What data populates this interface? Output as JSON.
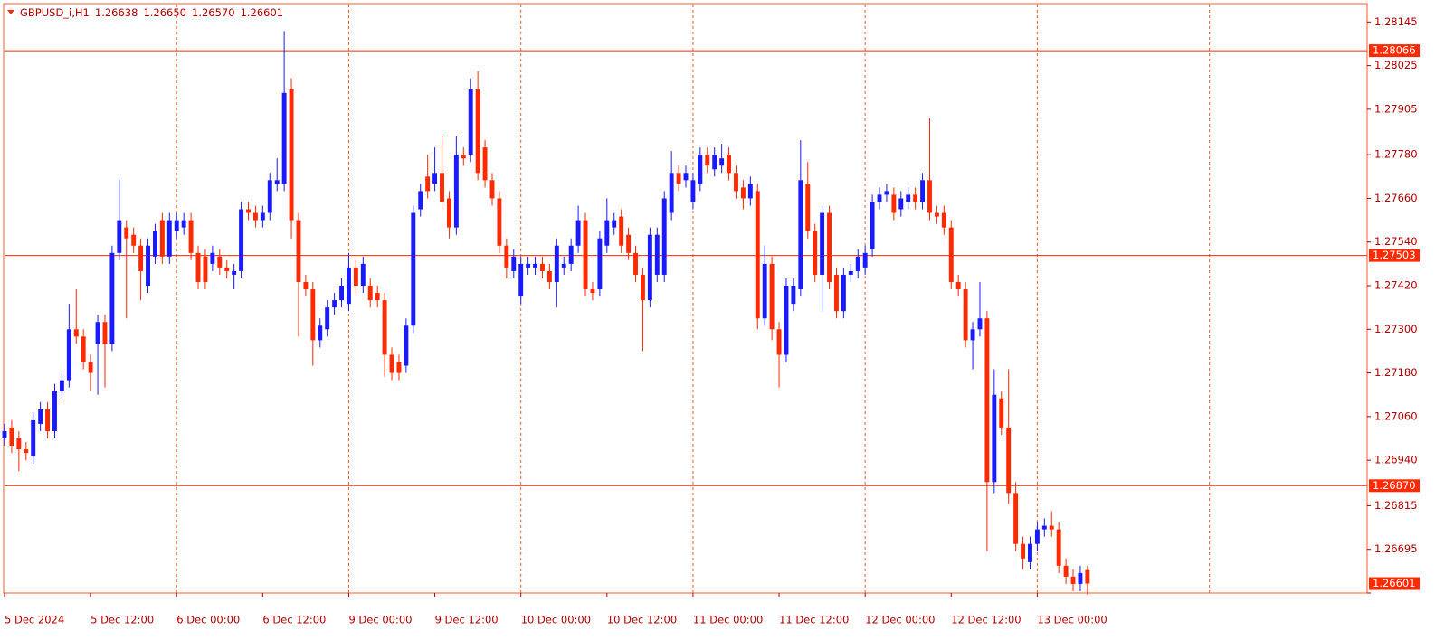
{
  "chart_data": {
    "type": "candlestick",
    "title": "GBPUSD_i,H1",
    "quote_labels": [
      "1.26638",
      "1.26650",
      "1.26570",
      "1.26601"
    ],
    "up_color": "#1a1aff",
    "down_color": "#ff2a00",
    "grid_color": "#ff5a2a",
    "line_color": "#ff2a00",
    "text_color": "#b00000",
    "xlim": [
      0,
      190
    ],
    "xticks": [
      {
        "value": 0,
        "label": "5 Dec 2024"
      },
      {
        "value": 12,
        "label": "5 Dec 12:00"
      },
      {
        "value": 24,
        "label": "6 Dec 00:00"
      },
      {
        "value": 36,
        "label": "6 Dec 12:00"
      },
      {
        "value": 48,
        "label": "9 Dec 00:00"
      },
      {
        "value": 60,
        "label": "9 Dec 12:00"
      },
      {
        "value": 72,
        "label": "10 Dec 00:00"
      },
      {
        "value": 84,
        "label": "10 Dec 12:00"
      },
      {
        "value": 96,
        "label": "11 Dec 00:00"
      },
      {
        "value": 108,
        "label": "11 Dec 12:00"
      },
      {
        "value": 120,
        "label": "12 Dec 00:00"
      },
      {
        "value": 132,
        "label": "12 Dec 12:00"
      },
      {
        "value": 144,
        "label": "13 Dec 00:00"
      }
    ],
    "vgrid": [
      24,
      48,
      72,
      96,
      120,
      144,
      168
    ],
    "ylim": [
      1.26575,
      1.28193
    ],
    "yticks": [
      1.28145,
      1.28025,
      1.27905,
      {
        "value": 1.2778,
        "label": "1.27780"
      },
      {
        "value": 1.2766,
        "label": "1.27660"
      },
      {
        "value": 1.2754,
        "label": "1.27540"
      },
      {
        "value": 1.2742,
        "label": "1.27420"
      },
      {
        "value": 1.273,
        "label": "1.27300"
      },
      {
        "value": 1.2718,
        "label": "1.27180"
      },
      {
        "value": 1.2706,
        "label": "1.27060"
      },
      {
        "value": 1.2694,
        "label": "1.26940"
      },
      1.26815,
      1.26695,
      1.26575
    ],
    "hlines": [
      1.28066,
      1.27503,
      {
        "value": 1.2687,
        "label": "1.26870"
      }
    ],
    "last_price": 1.26601,
    "open": [
      1.27,
      1.2703,
      1.27,
      1.2697,
      1.2695,
      1.2704,
      1.2708,
      1.2702,
      1.2713,
      1.2716,
      1.273,
      1.2728,
      1.2721,
      1.2726,
      1.2732,
      1.2726,
      1.2751,
      1.2758,
      1.2756,
      1.2753,
      1.2742,
      1.275,
      1.276,
      1.275,
      1.2757,
      1.2758,
      1.276,
      1.2751,
      1.275,
      1.2748,
      1.275,
      1.2747,
      1.2745,
      1.2746,
      1.2763,
      1.2762,
      1.276,
      1.2762,
      1.277,
      1.277,
      1.2796,
      1.276,
      1.2743,
      1.2741,
      1.2727,
      1.273,
      1.2736,
      1.2738,
      1.2737,
      1.2747,
      1.2742,
      1.2742,
      1.274,
      1.2738,
      1.2723,
      1.2721,
      1.272,
      1.2731,
      1.2763,
      1.2772,
      1.277,
      1.2773,
      1.2766,
      1.2758,
      1.2778,
      1.2778,
      1.2796,
      1.278,
      1.2771,
      1.2766,
      1.2753,
      1.2746,
      1.2739,
      1.2747,
      1.2747,
      1.2748,
      1.2746,
      1.2743,
      1.2747,
      1.2748,
      1.2753,
      1.276,
      1.2741,
      1.2741,
      1.2753,
      1.2758,
      1.2761,
      1.2756,
      1.2751,
      1.2745,
      1.2738,
      1.2745,
      1.2745,
      1.2762,
      1.2773,
      1.2771,
      1.2765,
      1.277,
      1.2778,
      1.2774,
      1.2775,
      1.2778,
      1.2773,
      1.2769,
      1.2766,
      1.2768,
      1.2733,
      1.2748,
      1.273,
      1.2723,
      1.2737,
      1.2741,
      1.277,
      1.2757,
      1.2745,
      1.2762,
      1.2745,
      1.2735,
      1.2745,
      1.2746,
      1.2747,
      1.2752,
      1.2765,
      1.2767,
      1.2767,
      1.2763,
      1.2765,
      1.2767,
      1.2765,
      1.2771,
      1.2762,
      1.2762,
      1.2758,
      1.2743,
      1.2741,
      1.2727,
      1.273,
      1.2733,
      1.2688,
      1.2711,
      1.2703,
      1.2685,
      1.2671,
      1.2666,
      1.2671,
      1.2675,
      1.2676,
      1.2675,
      1.2665,
      1.2662,
      1.266,
      1.26638
    ],
    "high": [
      1.2704,
      1.2705,
      1.2702,
      1.2699,
      1.2707,
      1.271,
      1.271,
      1.2715,
      1.2718,
      1.2737,
      1.2741,
      1.273,
      1.2723,
      1.2734,
      1.2734,
      1.2753,
      1.2771,
      1.276,
      1.2758,
      1.2755,
      1.2755,
      1.2759,
      1.2762,
      1.2762,
      1.2762,
      1.2762,
      1.2762,
      1.2753,
      1.2752,
      1.2753,
      1.2752,
      1.2749,
      1.2748,
      1.2765,
      1.2765,
      1.2764,
      1.2764,
      1.2773,
      1.2777,
      1.2812,
      1.2799,
      1.2762,
      1.2745,
      1.2743,
      1.2733,
      1.2738,
      1.274,
      1.2744,
      1.2751,
      1.2749,
      1.275,
      1.2744,
      1.2742,
      1.274,
      1.2725,
      1.2723,
      1.2733,
      1.2764,
      1.277,
      1.2778,
      1.278,
      1.2783,
      1.2768,
      1.2783,
      1.278,
      1.2799,
      1.2801,
      1.2782,
      1.2773,
      1.2768,
      1.2755,
      1.2752,
      1.275,
      1.275,
      1.275,
      1.275,
      1.2748,
      1.2755,
      1.275,
      1.2755,
      1.2764,
      1.2762,
      1.2743,
      1.2757,
      1.2766,
      1.2762,
      1.2763,
      1.2758,
      1.2753,
      1.2747,
      1.2758,
      1.2758,
      1.2768,
      1.2779,
      1.2775,
      1.2775,
      1.2773,
      1.278,
      1.278,
      1.278,
      1.2781,
      1.278,
      1.2775,
      1.2771,
      1.2772,
      1.277,
      1.2753,
      1.275,
      1.2732,
      1.2744,
      1.2744,
      1.2782,
      1.2776,
      1.2759,
      1.2764,
      1.2764,
      1.2747,
      1.2747,
      1.2748,
      1.2752,
      1.2753,
      1.2767,
      1.2769,
      1.277,
      1.2769,
      1.2768,
      1.2769,
      1.2769,
      1.2773,
      1.2788,
      1.2764,
      1.2764,
      1.276,
      1.2745,
      1.2743,
      1.2732,
      1.2743,
      1.2735,
      1.2719,
      1.2713,
      1.2719,
      1.2688,
      1.2673,
      1.2673,
      1.2677,
      1.2678,
      1.268,
      1.2677,
      1.2667,
      1.2664,
      1.2665,
      1.2665
    ],
    "low": [
      1.2698,
      1.2696,
      1.2691,
      1.2694,
      1.2693,
      1.2702,
      1.27,
      1.27,
      1.2711,
      1.2714,
      1.2726,
      1.2719,
      1.2713,
      1.2712,
      1.2714,
      1.2724,
      1.2749,
      1.2733,
      1.2751,
      1.2738,
      1.274,
      1.2748,
      1.2748,
      1.2748,
      1.2755,
      1.2756,
      1.2749,
      1.2741,
      1.2741,
      1.2746,
      1.2745,
      1.2744,
      1.2741,
      1.2744,
      1.276,
      1.2758,
      1.2758,
      1.276,
      1.2768,
      1.2768,
      1.2755,
      1.2728,
      1.2739,
      1.272,
      1.2725,
      1.2728,
      1.2734,
      1.2736,
      1.2735,
      1.274,
      1.274,
      1.2736,
      1.2736,
      1.2717,
      1.2716,
      1.2716,
      1.2718,
      1.2729,
      1.2761,
      1.2766,
      1.2768,
      1.2763,
      1.2755,
      1.2756,
      1.2775,
      1.2776,
      1.2771,
      1.2769,
      1.2764,
      1.2751,
      1.2744,
      1.2744,
      1.2737,
      1.2745,
      1.2745,
      1.2744,
      1.2741,
      1.2736,
      1.2745,
      1.2746,
      1.2751,
      1.2739,
      1.2738,
      1.2739,
      1.2751,
      1.2756,
      1.2751,
      1.2749,
      1.2743,
      1.2724,
      1.2736,
      1.2743,
      1.2743,
      1.276,
      1.2768,
      1.2769,
      1.2763,
      1.2768,
      1.2773,
      1.2772,
      1.2773,
      1.2771,
      1.2766,
      1.2763,
      1.2764,
      1.273,
      1.2731,
      1.2727,
      1.2714,
      1.2721,
      1.2735,
      1.2739,
      1.2755,
      1.2743,
      1.2735,
      1.2741,
      1.2733,
      1.2733,
      1.2743,
      1.2744,
      1.2745,
      1.275,
      1.2763,
      1.2765,
      1.276,
      1.2761,
      1.2763,
      1.2763,
      1.2763,
      1.276,
      1.2759,
      1.2756,
      1.2741,
      1.2739,
      1.2725,
      1.2719,
      1.2728,
      1.2669,
      1.2685,
      1.2701,
      1.2682,
      1.2669,
      1.2664,
      1.2664,
      1.2669,
      1.2673,
      1.2673,
      1.2663,
      1.266,
      1.2658,
      1.2658,
      1.2657
    ],
    "close": [
      1.2702,
      1.2698,
      1.2697,
      1.2696,
      1.2705,
      1.2708,
      1.2702,
      1.2713,
      1.2716,
      1.273,
      1.2728,
      1.2721,
      1.2718,
      1.2732,
      1.2726,
      1.2751,
      1.276,
      1.2755,
      1.2753,
      1.2746,
      1.2753,
      1.2757,
      1.275,
      1.276,
      1.276,
      1.276,
      1.2751,
      1.2743,
      1.2743,
      1.2751,
      1.2747,
      1.2746,
      1.2746,
      1.2763,
      1.2762,
      1.276,
      1.2762,
      1.2771,
      1.2771,
      1.2795,
      1.276,
      1.2743,
      1.2741,
      1.2727,
      1.2731,
      1.2736,
      1.2738,
      1.2742,
      1.2747,
      1.2742,
      1.2748,
      1.2738,
      1.2738,
      1.2723,
      1.2718,
      1.2718,
      1.2731,
      1.2762,
      1.2768,
      1.2768,
      1.2773,
      1.2765,
      1.2758,
      1.2778,
      1.2777,
      1.2796,
      1.2773,
      1.2771,
      1.2766,
      1.2753,
      1.2747,
      1.275,
      1.2748,
      1.2748,
      1.2748,
      1.2746,
      1.2743,
      1.2753,
      1.2748,
      1.2753,
      1.276,
      1.2741,
      1.274,
      1.2755,
      1.276,
      1.276,
      1.2753,
      1.2751,
      1.2745,
      1.2738,
      1.2756,
      1.2756,
      1.2766,
      1.2773,
      1.277,
      1.2773,
      1.2771,
      1.2778,
      1.2775,
      1.2778,
      1.2777,
      1.2773,
      1.2768,
      1.2766,
      1.277,
      1.2733,
      1.2748,
      1.273,
      1.2723,
      1.2742,
      1.2742,
      1.2771,
      1.2757,
      1.2745,
      1.2762,
      1.2743,
      1.2735,
      1.2745,
      1.2746,
      1.275,
      1.2751,
      1.2765,
      1.2767,
      1.2768,
      1.2762,
      1.2766,
      1.2767,
      1.2765,
      1.2771,
      1.2762,
      1.2761,
      1.2758,
      1.2743,
      1.2741,
      1.2727,
      1.273,
      1.2733,
      1.2688,
      1.2712,
      1.2703,
      1.2685,
      1.2671,
      1.2667,
      1.2671,
      1.2675,
      1.2676,
      1.2675,
      1.2665,
      1.2662,
      1.266,
      1.2663,
      1.26601
    ]
  }
}
